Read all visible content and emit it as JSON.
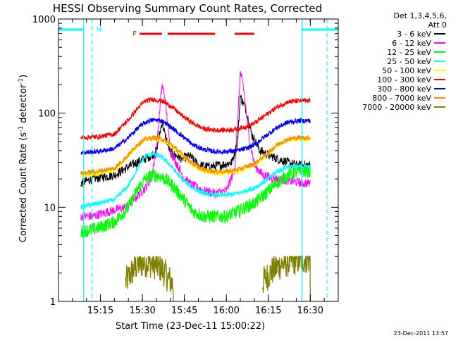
{
  "chart_data": {
    "type": "line",
    "title": "HESSI Observing Summary Count Rates, Corrected",
    "xlabel": "Start Time (23-Dec-11 15:00:22)",
    "ylabel": "Corrected Count Rate (s",
    "ylabel_sup1": "-1",
    "ylabel_mid": " detector",
    "ylabel_sup2": "-1",
    "ylabel_end": ")",
    "timestamp": "23-Dec-2011 13:57",
    "y_scale": "log",
    "ylim": [
      1,
      1000
    ],
    "y_ticks": [
      {
        "value": 1,
        "label": "1"
      },
      {
        "value": 10,
        "label": "10"
      },
      {
        "value": 100,
        "label": "100"
      },
      {
        "value": 1000,
        "label": "1000"
      }
    ],
    "xlim_minutes": [
      0,
      100
    ],
    "x_ticks": [
      {
        "minute": 15,
        "label": "15:15"
      },
      {
        "minute": 30,
        "label": "15:30"
      },
      {
        "minute": 45,
        "label": "15:45"
      },
      {
        "minute": 60,
        "label": "16:00"
      },
      {
        "minute": 75,
        "label": "16:15"
      },
      {
        "minute": 90,
        "label": "16:30"
      }
    ],
    "legend_placement": "right-outside",
    "legend_header": [
      "Det 1,3,4,5,6,",
      "Att 0"
    ],
    "series": [
      {
        "name": "3 - 6 keV",
        "color": "#000000",
        "points": [
          [
            8,
            18
          ],
          [
            12,
            20
          ],
          [
            20,
            22
          ],
          [
            26,
            28
          ],
          [
            30,
            32
          ],
          [
            33,
            35
          ],
          [
            35,
            40
          ],
          [
            37,
            80
          ],
          [
            38,
            60
          ],
          [
            40,
            38
          ],
          [
            44,
            33
          ],
          [
            47,
            35
          ],
          [
            50,
            28
          ],
          [
            54,
            27
          ],
          [
            58,
            28
          ],
          [
            62,
            30
          ],
          [
            64,
            50
          ],
          [
            65,
            150
          ],
          [
            67,
            110
          ],
          [
            69,
            60
          ],
          [
            72,
            40
          ],
          [
            75,
            36
          ],
          [
            78,
            33
          ],
          [
            82,
            30
          ],
          [
            85,
            28
          ],
          [
            88,
            28
          ],
          [
            90,
            28
          ]
        ]
      },
      {
        "name": "6 - 12 keV",
        "color": "#ff00ff",
        "points": [
          [
            8,
            8
          ],
          [
            12,
            8
          ],
          [
            18,
            9
          ],
          [
            24,
            10
          ],
          [
            28,
            13
          ],
          [
            31,
            16
          ],
          [
            33,
            20
          ],
          [
            35,
            40
          ],
          [
            37,
            200
          ],
          [
            38,
            150
          ],
          [
            40,
            40
          ],
          [
            42,
            30
          ],
          [
            45,
            20
          ],
          [
            48,
            17
          ],
          [
            52,
            15
          ],
          [
            56,
            14
          ],
          [
            60,
            15
          ],
          [
            63,
            25
          ],
          [
            65,
            270
          ],
          [
            66,
            200
          ],
          [
            68,
            60
          ],
          [
            70,
            28
          ],
          [
            73,
            22
          ],
          [
            78,
            20
          ],
          [
            83,
            19
          ],
          [
            88,
            18
          ],
          [
            90,
            18
          ]
        ]
      },
      {
        "name": "12 - 25 keV",
        "color": "#00ff00",
        "points": [
          [
            8,
            5.5
          ],
          [
            14,
            6
          ],
          [
            20,
            7
          ],
          [
            25,
            10
          ],
          [
            28,
            15
          ],
          [
            31,
            20
          ],
          [
            34,
            22
          ],
          [
            37,
            21
          ],
          [
            40,
            18
          ],
          [
            44,
            13
          ],
          [
            48,
            9
          ],
          [
            52,
            8
          ],
          [
            56,
            8
          ],
          [
            60,
            8
          ],
          [
            64,
            9
          ],
          [
            67,
            10
          ],
          [
            70,
            11
          ],
          [
            74,
            14
          ],
          [
            78,
            18
          ],
          [
            82,
            22
          ],
          [
            86,
            24
          ],
          [
            90,
            24
          ]
        ]
      },
      {
        "name": "25 - 50 keV",
        "color": "#00ffff",
        "points": [
          [
            8,
            10
          ],
          [
            14,
            11
          ],
          [
            20,
            12
          ],
          [
            25,
            17
          ],
          [
            28,
            25
          ],
          [
            31,
            35
          ],
          [
            34,
            37
          ],
          [
            37,
            34
          ],
          [
            40,
            28
          ],
          [
            44,
            20
          ],
          [
            48,
            16
          ],
          [
            52,
            14
          ],
          [
            56,
            13.5
          ],
          [
            60,
            13.5
          ],
          [
            64,
            14
          ],
          [
            67,
            15
          ],
          [
            70,
            16
          ],
          [
            74,
            19
          ],
          [
            78,
            24
          ],
          [
            82,
            27
          ],
          [
            86,
            27
          ],
          [
            90,
            27
          ]
        ]
      },
      {
        "name": "50 - 100 keV",
        "color": "#ffff00",
        "points": [
          [
            8,
            22
          ],
          [
            14,
            23
          ],
          [
            20,
            25
          ],
          [
            25,
            35
          ],
          [
            28,
            45
          ],
          [
            31,
            52
          ],
          [
            34,
            54
          ],
          [
            37,
            52
          ],
          [
            40,
            46
          ],
          [
            44,
            36
          ],
          [
            48,
            28
          ],
          [
            52,
            24
          ],
          [
            56,
            23
          ],
          [
            60,
            23
          ],
          [
            64,
            24
          ],
          [
            67,
            26
          ],
          [
            70,
            28
          ],
          [
            74,
            35
          ],
          [
            78,
            45
          ],
          [
            82,
            52
          ],
          [
            86,
            53
          ],
          [
            90,
            53
          ]
        ]
      },
      {
        "name": "100 - 300 keV",
        "color": "#ff0000",
        "points": [
          [
            8,
            55
          ],
          [
            14,
            56
          ],
          [
            20,
            60
          ],
          [
            25,
            85
          ],
          [
            28,
            110
          ],
          [
            31,
            135
          ],
          [
            34,
            140
          ],
          [
            37,
            135
          ],
          [
            40,
            120
          ],
          [
            44,
            95
          ],
          [
            48,
            78
          ],
          [
            52,
            68
          ],
          [
            56,
            66
          ],
          [
            60,
            66
          ],
          [
            64,
            68
          ],
          [
            67,
            72
          ],
          [
            70,
            78
          ],
          [
            74,
            95
          ],
          [
            78,
            115
          ],
          [
            82,
            132
          ],
          [
            86,
            135
          ],
          [
            90,
            135
          ]
        ]
      },
      {
        "name": "300 - 800 keV",
        "color": "#0000ff",
        "points": [
          [
            8,
            38
          ],
          [
            14,
            39
          ],
          [
            20,
            42
          ],
          [
            25,
            55
          ],
          [
            28,
            68
          ],
          [
            31,
            80
          ],
          [
            34,
            85
          ],
          [
            37,
            83
          ],
          [
            40,
            72
          ],
          [
            44,
            58
          ],
          [
            48,
            46
          ],
          [
            52,
            41
          ],
          [
            56,
            39
          ],
          [
            60,
            39
          ],
          [
            64,
            40
          ],
          [
            67,
            42
          ],
          [
            70,
            46
          ],
          [
            74,
            57
          ],
          [
            78,
            70
          ],
          [
            82,
            80
          ],
          [
            86,
            83
          ],
          [
            90,
            83
          ]
        ]
      },
      {
        "name": "800 - 7000 keV",
        "color": "#ff8c00",
        "points": [
          [
            8,
            23
          ],
          [
            14,
            24
          ],
          [
            20,
            26
          ],
          [
            25,
            36
          ],
          [
            28,
            46
          ],
          [
            31,
            53
          ],
          [
            34,
            55
          ],
          [
            37,
            53
          ],
          [
            40,
            47
          ],
          [
            44,
            37
          ],
          [
            48,
            29
          ],
          [
            52,
            25
          ],
          [
            56,
            24
          ],
          [
            60,
            24
          ],
          [
            64,
            25
          ],
          [
            67,
            27
          ],
          [
            70,
            29
          ],
          [
            74,
            36
          ],
          [
            78,
            46
          ],
          [
            82,
            53
          ],
          [
            86,
            55
          ],
          [
            90,
            55
          ]
        ]
      },
      {
        "name": "7000 - 20000 keV",
        "color": "#808000",
        "points": [
          [
            24,
            1.6
          ],
          [
            26,
            2
          ],
          [
            28,
            2.4
          ],
          [
            31,
            2.6
          ],
          [
            34,
            2.5
          ],
          [
            37,
            2.2
          ],
          [
            39,
            1.8
          ],
          [
            41,
            1.5
          ],
          [
            73,
            1.6
          ],
          [
            75,
            1.9
          ],
          [
            77,
            2.2
          ],
          [
            80,
            2.5
          ],
          [
            84,
            2.7
          ],
          [
            88,
            2.8
          ],
          [
            90,
            2.8
          ]
        ]
      }
    ],
    "annotations": {
      "n_label": "N",
      "f_label": "F",
      "night_minutes": [
        [
          0,
          9
        ],
        [
          87,
          100
        ]
      ],
      "night_dashed_lines_minutes": [
        12,
        96
      ],
      "night_solid_lines_minutes": [
        9,
        87
      ],
      "flare_segments_minutes": [
        [
          29,
          37
        ],
        [
          39,
          56
        ],
        [
          63,
          70
        ]
      ]
    }
  }
}
